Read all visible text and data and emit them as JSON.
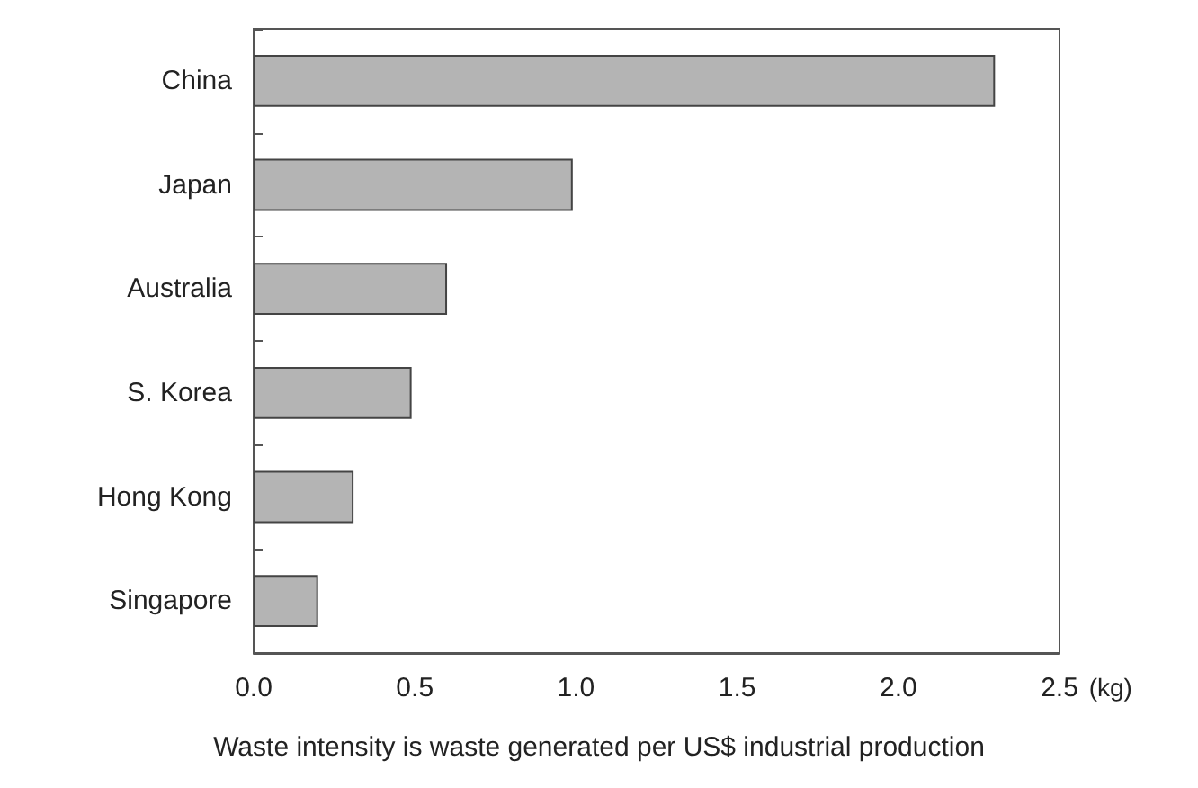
{
  "chart_data": {
    "type": "bar",
    "orientation": "horizontal",
    "categories": [
      "China",
      "Japan",
      "Australia",
      "S. Korea",
      "Hong Kong",
      "Singapore"
    ],
    "values": [
      2.3,
      0.99,
      0.6,
      0.49,
      0.31,
      0.2
    ],
    "color": "#b4b4b4",
    "xlim": [
      0,
      2.5
    ],
    "xticks": [
      {
        "value": 0,
        "label": "0.0"
      },
      {
        "value": 0.5,
        "label": "0.5"
      },
      {
        "value": 1,
        "label": "1.0"
      },
      {
        "value": 1.5,
        "label": "1.5"
      },
      {
        "value": 2,
        "label": "2.0"
      },
      {
        "value": 2.5,
        "label": "2.5"
      }
    ],
    "xlabel": "(kg)",
    "annotations": [
      "Waste intensity is waste generated per US$ industrial production"
    ],
    "grid": false
  }
}
